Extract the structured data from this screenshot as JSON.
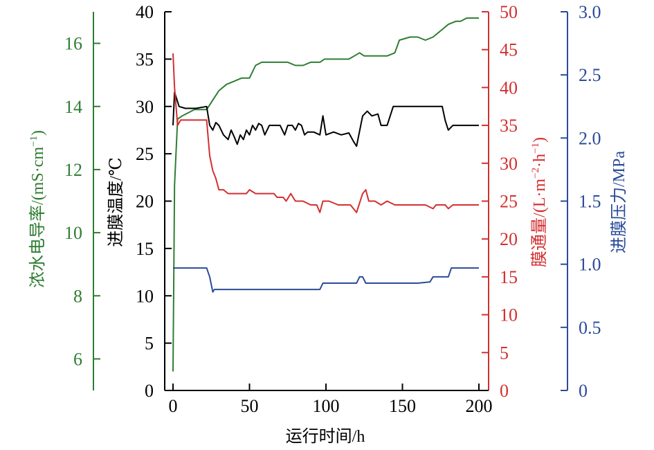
{
  "chart_data": {
    "type": "line",
    "title": "",
    "xlabel": "运行时间/h",
    "xlim": [
      0,
      200
    ],
    "x_ticks": [
      "0",
      "50",
      "100",
      "150",
      "200"
    ],
    "axes": {
      "conductivity": {
        "label_main": "浓水电导率/(mS·cm",
        "label_sup": "−1",
        "label_end": ")",
        "color": "#2e7d32",
        "range": [
          5,
          17
        ],
        "ticks": [
          "6",
          "8",
          "10",
          "12",
          "14",
          "16"
        ],
        "tick_values": [
          6,
          8,
          10,
          12,
          14,
          16
        ]
      },
      "temperature": {
        "label": "进膜温度/℃",
        "color": "#000000",
        "range": [
          0,
          40
        ],
        "ticks": [
          "0",
          "5",
          "10",
          "15",
          "20",
          "25",
          "30",
          "35",
          "40"
        ],
        "tick_values": [
          0,
          5,
          10,
          15,
          20,
          25,
          30,
          35,
          40
        ]
      },
      "flux": {
        "label_main": "膜通量/(L·m",
        "label_sup1": "−2",
        "label_mid": "·h",
        "label_sup2": "−1",
        "label_end": ")",
        "color": "#d32f2f",
        "range": [
          0,
          50
        ],
        "ticks": [
          "0",
          "5",
          "10",
          "15",
          "20",
          "25",
          "30",
          "35",
          "40",
          "45",
          "50"
        ],
        "tick_values": [
          0,
          5,
          10,
          15,
          20,
          25,
          30,
          35,
          40,
          45,
          50
        ]
      },
      "pressure": {
        "label": "进膜压力/MPa",
        "color": "#2b4a9b",
        "range": [
          0,
          3
        ],
        "ticks": [
          "0",
          "0.5",
          "1.0",
          "1.5",
          "2.0",
          "2.5",
          "3.0"
        ],
        "tick_values": [
          0,
          0.5,
          1.0,
          1.5,
          2.0,
          2.5,
          3.0
        ]
      }
    },
    "series": [
      {
        "axis": "conductivity",
        "color": "#2e7d32",
        "points": [
          [
            0,
            5.6
          ],
          [
            1,
            11.5
          ],
          [
            3,
            13.6
          ],
          [
            6,
            13.7
          ],
          [
            10,
            13.8
          ],
          [
            14,
            13.9
          ],
          [
            22,
            13.9
          ],
          [
            26,
            14.2
          ],
          [
            30,
            14.5
          ],
          [
            35,
            14.7
          ],
          [
            40,
            14.8
          ],
          [
            45,
            14.9
          ],
          [
            50,
            14.9
          ],
          [
            54,
            15.3
          ],
          [
            58,
            15.4
          ],
          [
            65,
            15.4
          ],
          [
            75,
            15.4
          ],
          [
            80,
            15.3
          ],
          [
            85,
            15.3
          ],
          [
            90,
            15.4
          ],
          [
            96,
            15.4
          ],
          [
            99,
            15.5
          ],
          [
            105,
            15.5
          ],
          [
            115,
            15.5
          ],
          [
            122,
            15.7
          ],
          [
            125,
            15.6
          ],
          [
            130,
            15.6
          ],
          [
            140,
            15.6
          ],
          [
            145,
            15.7
          ],
          [
            148,
            16.1
          ],
          [
            155,
            16.2
          ],
          [
            160,
            16.2
          ],
          [
            165,
            16.1
          ],
          [
            170,
            16.2
          ],
          [
            175,
            16.4
          ],
          [
            180,
            16.6
          ],
          [
            185,
            16.7
          ],
          [
            188,
            16.7
          ],
          [
            192,
            16.8
          ],
          [
            196,
            16.8
          ],
          [
            200,
            16.8
          ]
        ]
      },
      {
        "axis": "temperature",
        "color": "#000000",
        "points": [
          [
            0,
            28
          ],
          [
            1,
            31.5
          ],
          [
            2,
            31
          ],
          [
            4,
            30
          ],
          [
            8,
            29.8
          ],
          [
            15,
            29.8
          ],
          [
            22,
            30
          ],
          [
            24,
            28
          ],
          [
            26,
            27.5
          ],
          [
            28,
            28.3
          ],
          [
            30,
            28
          ],
          [
            33,
            27
          ],
          [
            36,
            26.5
          ],
          [
            38,
            27.5
          ],
          [
            40,
            26.8
          ],
          [
            42,
            26
          ],
          [
            44,
            27
          ],
          [
            46,
            26.5
          ],
          [
            48,
            27.5
          ],
          [
            50,
            27
          ],
          [
            52,
            28
          ],
          [
            54,
            27.5
          ],
          [
            56,
            28.2
          ],
          [
            58,
            28
          ],
          [
            60,
            27
          ],
          [
            63,
            28
          ],
          [
            66,
            28
          ],
          [
            70,
            28
          ],
          [
            73,
            27
          ],
          [
            75,
            28
          ],
          [
            78,
            28
          ],
          [
            80,
            27.5
          ],
          [
            82,
            28.2
          ],
          [
            84,
            28
          ],
          [
            86,
            27
          ],
          [
            88,
            27.3
          ],
          [
            92,
            27.3
          ],
          [
            96,
            27
          ],
          [
            98,
            29
          ],
          [
            100,
            27
          ],
          [
            105,
            27.3
          ],
          [
            110,
            27
          ],
          [
            115,
            27.2
          ],
          [
            118,
            26.3
          ],
          [
            120,
            25.8
          ],
          [
            124,
            29
          ],
          [
            127,
            29.5
          ],
          [
            130,
            29
          ],
          [
            134,
            29.2
          ],
          [
            136,
            28
          ],
          [
            140,
            28
          ],
          [
            144,
            30
          ],
          [
            150,
            30
          ],
          [
            160,
            30
          ],
          [
            170,
            30
          ],
          [
            176,
            30
          ],
          [
            178,
            28.5
          ],
          [
            180,
            27.5
          ],
          [
            183,
            28
          ],
          [
            186,
            28
          ],
          [
            190,
            28
          ],
          [
            195,
            28
          ],
          [
            200,
            28
          ]
        ]
      },
      {
        "axis": "flux",
        "color": "#d32f2f",
        "points": [
          [
            0,
            44.5
          ],
          [
            1,
            40
          ],
          [
            3,
            35
          ],
          [
            5,
            35.7
          ],
          [
            15,
            35.7
          ],
          [
            22,
            35.7
          ],
          [
            24,
            31
          ],
          [
            26,
            29
          ],
          [
            28,
            28
          ],
          [
            30,
            26.5
          ],
          [
            33,
            26.5
          ],
          [
            36,
            26
          ],
          [
            42,
            26
          ],
          [
            48,
            26
          ],
          [
            50,
            26.5
          ],
          [
            54,
            26
          ],
          [
            60,
            26
          ],
          [
            66,
            26
          ],
          [
            68,
            25.5
          ],
          [
            72,
            25.5
          ],
          [
            74,
            25
          ],
          [
            77,
            26
          ],
          [
            80,
            25
          ],
          [
            85,
            25
          ],
          [
            90,
            24.5
          ],
          [
            94,
            24.5
          ],
          [
            96,
            23.5
          ],
          [
            98,
            25
          ],
          [
            102,
            25
          ],
          [
            108,
            24.5
          ],
          [
            112,
            24.5
          ],
          [
            116,
            24.5
          ],
          [
            120,
            23.5
          ],
          [
            124,
            26
          ],
          [
            126,
            26.5
          ],
          [
            128,
            25
          ],
          [
            132,
            25
          ],
          [
            136,
            24.5
          ],
          [
            140,
            25
          ],
          [
            145,
            24.5
          ],
          [
            150,
            24.5
          ],
          [
            160,
            24.5
          ],
          [
            165,
            24.5
          ],
          [
            170,
            24
          ],
          [
            172,
            24.5
          ],
          [
            175,
            24.5
          ],
          [
            178,
            24.5
          ],
          [
            180,
            24
          ],
          [
            183,
            24.5
          ],
          [
            190,
            24.5
          ],
          [
            195,
            24.5
          ],
          [
            200,
            24.5
          ]
        ]
      },
      {
        "axis": "pressure",
        "color": "#2b4a9b",
        "points": [
          [
            0,
            0.97
          ],
          [
            5,
            0.97
          ],
          [
            15,
            0.97
          ],
          [
            22,
            0.97
          ],
          [
            24,
            0.9
          ],
          [
            26,
            0.78
          ],
          [
            27,
            0.8
          ],
          [
            30,
            0.8
          ],
          [
            50,
            0.8
          ],
          [
            70,
            0.8
          ],
          [
            90,
            0.8
          ],
          [
            96,
            0.8
          ],
          [
            98,
            0.85
          ],
          [
            110,
            0.85
          ],
          [
            120,
            0.85
          ],
          [
            122,
            0.9
          ],
          [
            124,
            0.9
          ],
          [
            126,
            0.85
          ],
          [
            140,
            0.85
          ],
          [
            160,
            0.85
          ],
          [
            168,
            0.86
          ],
          [
            170,
            0.9
          ],
          [
            180,
            0.9
          ],
          [
            182,
            0.97
          ],
          [
            190,
            0.97
          ],
          [
            200,
            0.97
          ]
        ]
      }
    ]
  }
}
